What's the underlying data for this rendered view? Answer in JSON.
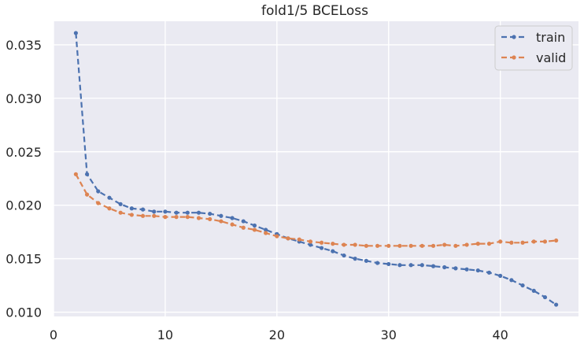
{
  "chart_data": {
    "type": "line",
    "title": "fold1/5 BCELoss",
    "xlabel": "",
    "ylabel": "",
    "xlim": [
      0,
      47
    ],
    "ylim": [
      0.0096,
      0.0372
    ],
    "xticks": [
      0,
      10,
      20,
      30,
      40
    ],
    "yticks": [
      0.01,
      0.015,
      0.02,
      0.025,
      0.03,
      0.035
    ],
    "ytick_labels": [
      "0.010",
      "0.015",
      "0.020",
      "0.025",
      "0.030",
      "0.035"
    ],
    "grid": true,
    "legend_position": "top-right",
    "x": [
      2,
      3,
      4,
      5,
      6,
      7,
      8,
      9,
      10,
      11,
      12,
      13,
      14,
      15,
      16,
      17,
      18,
      19,
      20,
      21,
      22,
      23,
      24,
      25,
      26,
      27,
      28,
      29,
      30,
      31,
      32,
      33,
      34,
      35,
      36,
      37,
      38,
      39,
      40,
      41,
      42,
      43,
      44,
      45
    ],
    "series": [
      {
        "name": "train",
        "color": "#4c72b0",
        "values": [
          0.0361,
          0.0229,
          0.0213,
          0.0207,
          0.0201,
          0.0197,
          0.0196,
          0.0194,
          0.0194,
          0.0193,
          0.0193,
          0.0193,
          0.0192,
          0.019,
          0.0188,
          0.0185,
          0.0181,
          0.0177,
          0.0173,
          0.0169,
          0.0166,
          0.0163,
          0.016,
          0.0157,
          0.0153,
          0.015,
          0.0148,
          0.0146,
          0.0145,
          0.0144,
          0.0144,
          0.0144,
          0.0143,
          0.0142,
          0.0141,
          0.014,
          0.0139,
          0.0137,
          0.0134,
          0.013,
          0.0125,
          0.012,
          0.0114,
          0.0107
        ]
      },
      {
        "name": "valid",
        "color": "#dd8452",
        "values": [
          0.0229,
          0.021,
          0.0202,
          0.0197,
          0.0193,
          0.0191,
          0.019,
          0.019,
          0.0189,
          0.0189,
          0.0189,
          0.0188,
          0.0187,
          0.0185,
          0.0182,
          0.0179,
          0.0177,
          0.0174,
          0.0171,
          0.0169,
          0.0168,
          0.0166,
          0.0165,
          0.0164,
          0.0163,
          0.0163,
          0.0162,
          0.0162,
          0.0162,
          0.0162,
          0.0162,
          0.0162,
          0.0162,
          0.0163,
          0.0162,
          0.0163,
          0.0164,
          0.0164,
          0.0166,
          0.0165,
          0.0165,
          0.0166,
          0.0166,
          0.0167
        ]
      }
    ]
  }
}
